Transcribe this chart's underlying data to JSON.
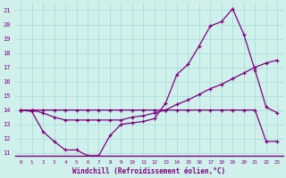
{
  "xlabel": "Windchill (Refroidissement éolien,°C)",
  "line_color": "#800080",
  "bg_color": "#cff0eb",
  "grid_color": "#aaddd8",
  "xlim": [
    -0.5,
    23.5
  ],
  "ylim": [
    10.8,
    21.5
  ],
  "yticks": [
    11,
    12,
    13,
    14,
    15,
    16,
    17,
    18,
    19,
    20,
    21
  ],
  "xticks": [
    0,
    1,
    2,
    3,
    4,
    5,
    6,
    7,
    8,
    9,
    10,
    11,
    12,
    13,
    14,
    15,
    16,
    17,
    18,
    19,
    20,
    21,
    22,
    23
  ],
  "series1_x": [
    0,
    1,
    2,
    3,
    4,
    5,
    6,
    7,
    8,
    9,
    10,
    11,
    12,
    13,
    14,
    15,
    16,
    17,
    18,
    19,
    20,
    21,
    22,
    23
  ],
  "series1_y": [
    14.0,
    13.9,
    12.5,
    11.8,
    11.2,
    11.2,
    10.8,
    10.8,
    12.2,
    13.0,
    13.1,
    13.2,
    13.4,
    14.5,
    16.5,
    17.2,
    18.5,
    19.9,
    20.2,
    21.1,
    19.3,
    16.8,
    14.2,
    13.8
  ],
  "series2_x": [
    0,
    1,
    2,
    3,
    4,
    5,
    6,
    7,
    8,
    9,
    10,
    11,
    12,
    13,
    14,
    15,
    16,
    17,
    18,
    19,
    20,
    21,
    22,
    23
  ],
  "series2_y": [
    14.0,
    14.0,
    13.8,
    13.5,
    13.3,
    13.3,
    13.3,
    13.3,
    13.3,
    13.3,
    13.5,
    13.6,
    13.8,
    14.0,
    14.4,
    14.7,
    15.1,
    15.5,
    15.8,
    16.2,
    16.6,
    17.0,
    17.3,
    17.5
  ],
  "series3_x": [
    0,
    1,
    2,
    3,
    4,
    5,
    6,
    7,
    8,
    9,
    10,
    11,
    12,
    13,
    14,
    15,
    16,
    17,
    18,
    19,
    20,
    21,
    22,
    23
  ],
  "series3_y": [
    14.0,
    14.0,
    14.0,
    14.0,
    14.0,
    14.0,
    14.0,
    14.0,
    14.0,
    14.0,
    14.0,
    14.0,
    14.0,
    14.0,
    14.0,
    14.0,
    14.0,
    14.0,
    14.0,
    14.0,
    14.0,
    14.0,
    11.8,
    11.8
  ]
}
